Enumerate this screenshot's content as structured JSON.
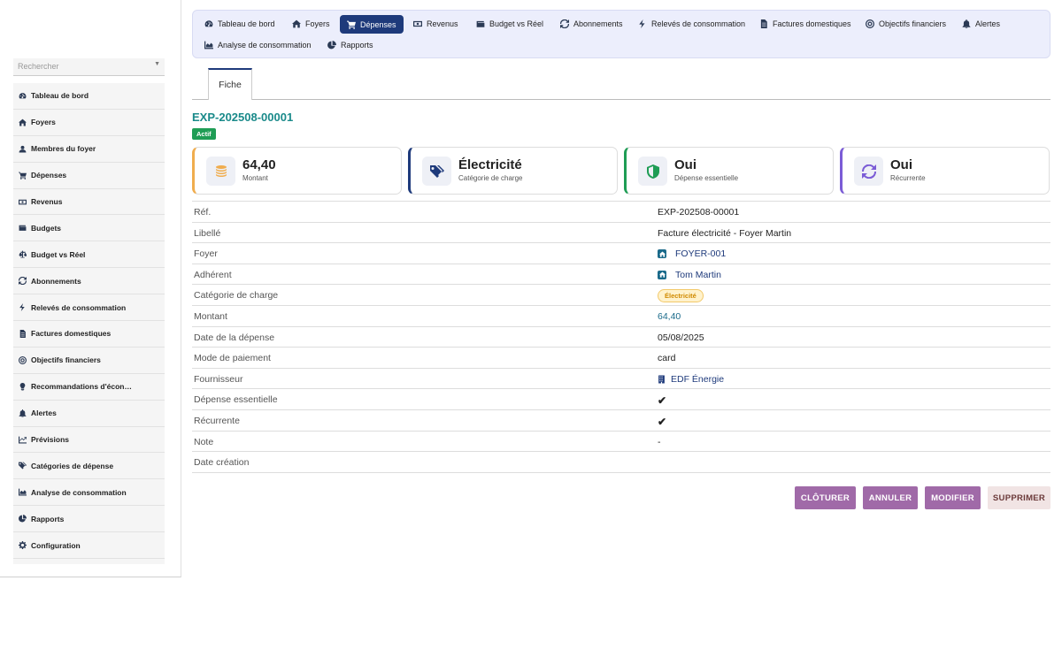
{
  "sidebar": {
    "search_placeholder": "Rechercher",
    "items": [
      {
        "label": "Tableau de bord",
        "icon": "dashboard-icon"
      },
      {
        "label": "Foyers",
        "icon": "home-icon"
      },
      {
        "label": "Membres du foyer",
        "icon": "user-icon"
      },
      {
        "label": "Dépenses",
        "icon": "cart-icon"
      },
      {
        "label": "Revenus",
        "icon": "money-icon"
      },
      {
        "label": "Budgets",
        "icon": "wallet-icon"
      },
      {
        "label": "Budget vs Réel",
        "icon": "balance-icon"
      },
      {
        "label": "Abonnements",
        "icon": "refresh-icon"
      },
      {
        "label": "Relevés de consommation",
        "icon": "bolt-icon"
      },
      {
        "label": "Factures domestiques",
        "icon": "invoice-icon"
      },
      {
        "label": "Objectifs financiers",
        "icon": "target-icon"
      },
      {
        "label": "Recommandations d'écon…",
        "icon": "lightbulb-icon"
      },
      {
        "label": "Alertes",
        "icon": "bell-icon"
      },
      {
        "label": "Prévisions",
        "icon": "trend-icon"
      },
      {
        "label": "Catégories de dépense",
        "icon": "tags-icon"
      },
      {
        "label": "Analyse de consommation",
        "icon": "area-chart-icon"
      },
      {
        "label": "Rapports",
        "icon": "pie-chart-icon"
      },
      {
        "label": "Configuration",
        "icon": "gear-icon"
      }
    ]
  },
  "topnav": {
    "items": [
      {
        "label": "Tableau de bord",
        "icon": "dashboard-icon"
      },
      {
        "label": "Foyers",
        "icon": "home-icon"
      },
      {
        "label": "Dépenses",
        "icon": "cart-icon",
        "active": true
      },
      {
        "label": "Revenus",
        "icon": "money-icon"
      },
      {
        "label": "Budget vs Réel",
        "icon": "wallet-icon"
      },
      {
        "label": "Abonnements",
        "icon": "refresh-icon"
      },
      {
        "label": "Relevés de consommation",
        "icon": "bolt-icon"
      },
      {
        "label": "Factures domestiques",
        "icon": "invoice-icon"
      },
      {
        "label": "Objectifs financiers",
        "icon": "target-icon"
      },
      {
        "label": "Alertes",
        "icon": "bell-icon"
      },
      {
        "label": "Analyse de consommation",
        "icon": "area-chart-icon"
      },
      {
        "label": "Rapports",
        "icon": "pie-chart-icon"
      }
    ]
  },
  "tab": {
    "label": "Fiche"
  },
  "record": {
    "ref": "EXP-202508-00001",
    "status": "Actif",
    "status_color": "#1f9d55"
  },
  "cards": [
    {
      "value": "64,40",
      "label": "Montant",
      "accent": "#f0ad4e",
      "icon": "coins-icon"
    },
    {
      "value": "Électricité",
      "label": "Catégorie de charge",
      "accent": "#1e3a7b",
      "icon": "tags-icon"
    },
    {
      "value": "Oui",
      "label": "Dépense essentielle",
      "accent": "#1f9d55",
      "icon": "shield-icon"
    },
    {
      "value": "Oui",
      "label": "Récurrente",
      "accent": "#7b5cd6",
      "icon": "refresh-icon"
    }
  ],
  "details": {
    "ref": {
      "key": "Réf.",
      "value": "EXP-202508-00001"
    },
    "label": {
      "key": "Libellé",
      "value": "Facture électricité - Foyer Martin"
    },
    "household": {
      "key": "Foyer",
      "value": "FOYER-001"
    },
    "member": {
      "key": "Adhérent",
      "value": "Tom Martin"
    },
    "category": {
      "key": "Catégorie de charge",
      "value": "Électricité"
    },
    "amount": {
      "key": "Montant",
      "value": "64,40"
    },
    "date": {
      "key": "Date de la dépense",
      "value": "05/08/2025"
    },
    "payment": {
      "key": "Mode de paiement",
      "value": "card"
    },
    "supplier": {
      "key": "Fournisseur",
      "value": "EDF Énergie"
    },
    "essential": {
      "key": "Dépense essentielle",
      "value": "✔"
    },
    "recurring": {
      "key": "Récurrente",
      "value": "✔"
    },
    "note": {
      "key": "Note",
      "value": "-"
    },
    "created": {
      "key": "Date création",
      "value": ""
    }
  },
  "actions": {
    "close": "CLÔTURER",
    "cancel": "ANNULER",
    "modify": "MODIFIER",
    "delete": "SUPPRIMER"
  }
}
